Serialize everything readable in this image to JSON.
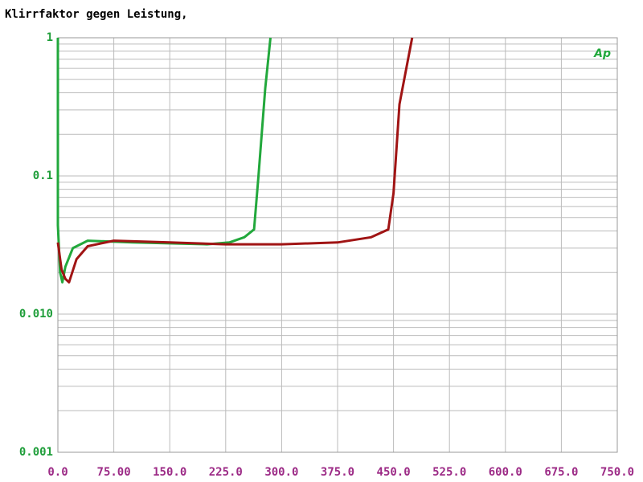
{
  "chart_data": {
    "type": "line",
    "title": "Klirrfaktor gegen Leistung,",
    "logo": "Ap",
    "xlim": [
      0,
      750
    ],
    "xticks": [
      {
        "value": 0,
        "label": "0.0"
      },
      {
        "value": 75,
        "label": "75.00"
      },
      {
        "value": 150,
        "label": "150.0"
      },
      {
        "value": 225,
        "label": "225.0"
      },
      {
        "value": 300,
        "label": "300.0"
      },
      {
        "value": 375,
        "label": "375.0"
      },
      {
        "value": 450,
        "label": "450.0"
      },
      {
        "value": 525,
        "label": "525.0"
      },
      {
        "value": 600,
        "label": "600.0"
      },
      {
        "value": 675,
        "label": "675.0"
      },
      {
        "value": 750,
        "label": "750.0"
      }
    ],
    "ylim": [
      0.001,
      1
    ],
    "yticks": [
      0.001,
      {
        "value": 0.01,
        "label": "0.010"
      },
      0.1,
      1
    ],
    "log_scale_y": true,
    "grid": true,
    "ytick_color": "#1f9e3a",
    "xtick_color": "#9c2a86",
    "series": [
      {
        "color": "#22a83c",
        "x": [
          0,
          0,
          3,
          6,
          10,
          20,
          40,
          100,
          200,
          230,
          250,
          263,
          269,
          278,
          285
        ],
        "values": [
          1,
          0.044,
          0.02,
          0.017,
          0.022,
          0.03,
          0.034,
          0.033,
          0.032,
          0.033,
          0.036,
          0.041,
          0.1,
          0.43,
          1
        ]
      },
      {
        "color": "#a01414",
        "x": [
          0,
          5,
          10,
          15,
          25,
          40,
          75,
          150,
          225,
          300,
          375,
          420,
          443,
          450,
          458,
          475
        ],
        "values": [
          0.033,
          0.021,
          0.018,
          0.017,
          0.025,
          0.031,
          0.034,
          0.033,
          0.032,
          0.032,
          0.033,
          0.036,
          0.041,
          0.075,
          0.33,
          1
        ]
      }
    ]
  }
}
